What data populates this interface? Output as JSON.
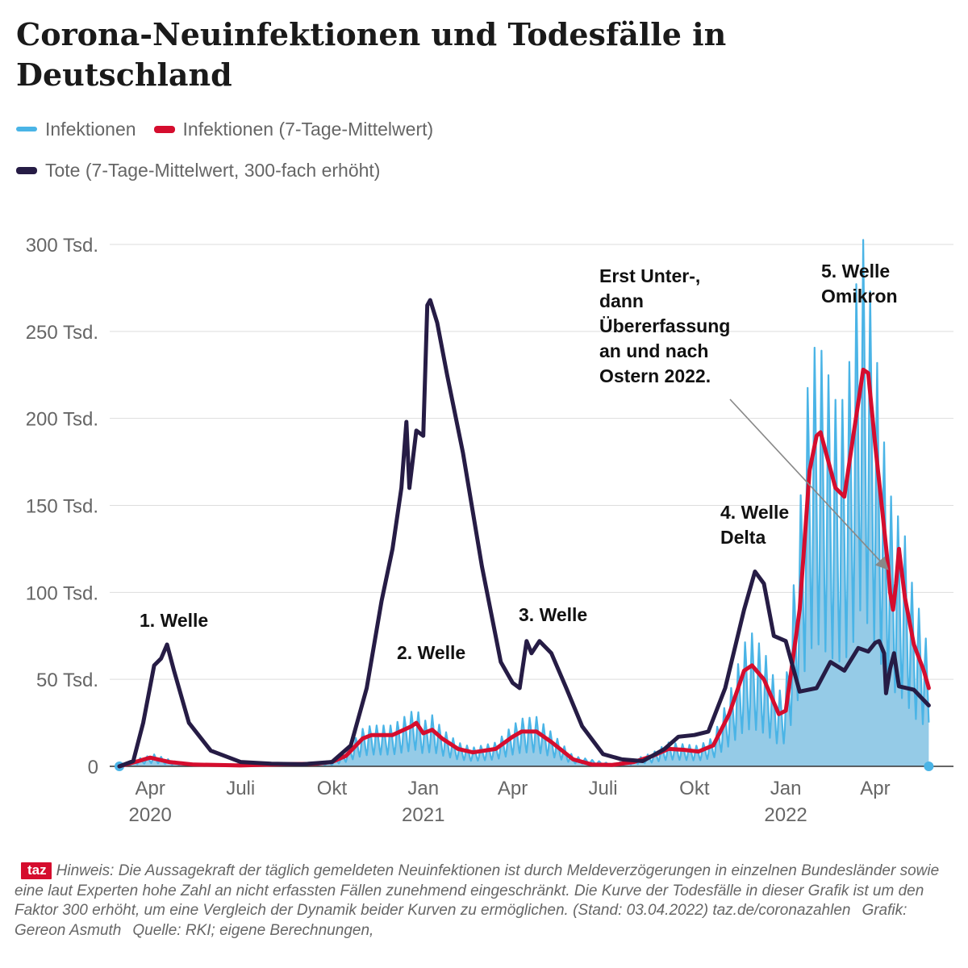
{
  "title": "Corona-Neuinfektionen und Todesfälle in Deutschland",
  "colors": {
    "infections": "#4ab4e6",
    "infections_fill": "#95cbe7",
    "avg": "#d50d2e",
    "deaths": "#261c45",
    "grid": "#dddddd",
    "axis": "#333333"
  },
  "legend": [
    {
      "label": "Infektionen",
      "color": "#4ab4e6"
    },
    {
      "label": "Infektionen (7-Tage-Mittelwert)",
      "color": "#d50d2e"
    },
    {
      "label": "Tote (7-Tage-Mittelwert, 300-fach erhöht)",
      "color": "#261c45"
    }
  ],
  "chart_data": {
    "type": "line",
    "title": "Corona-Neuinfektionen und Todesfälle in Deutschland",
    "x_axis": {
      "type": "date",
      "range": [
        "2020-03-01",
        "2022-06-01"
      ],
      "ticks": [
        {
          "date": "2020-04-01",
          "label": "Apr",
          "year": "2020"
        },
        {
          "date": "2020-07-01",
          "label": "Juli"
        },
        {
          "date": "2020-10-01",
          "label": "Okt"
        },
        {
          "date": "2021-01-01",
          "label": "Jan",
          "year": "2021"
        },
        {
          "date": "2021-04-01",
          "label": "Apr"
        },
        {
          "date": "2021-07-01",
          "label": "Juli"
        },
        {
          "date": "2021-10-01",
          "label": "Okt"
        },
        {
          "date": "2022-01-01",
          "label": "Jan",
          "year": "2022"
        },
        {
          "date": "2022-04-01",
          "label": "Apr"
        }
      ]
    },
    "y_axis": {
      "range": [
        0,
        320000
      ],
      "ticks": [
        {
          "value": 0,
          "label": "0"
        },
        {
          "value": 50000,
          "label": "50 Tsd."
        },
        {
          "value": 100000,
          "label": "100 Tsd."
        },
        {
          "value": 150000,
          "label": "150 Tsd."
        },
        {
          "value": 200000,
          "label": "200 Tsd."
        },
        {
          "value": 250000,
          "label": "250 Tsd."
        },
        {
          "value": 300000,
          "label": "300 Tsd."
        }
      ]
    },
    "grid": true,
    "series": [
      {
        "name": "Infektionen (7-Tage-Mittelwert)",
        "type": "line",
        "points": [
          [
            "2020-03-01",
            0
          ],
          [
            "2020-03-20",
            3000
          ],
          [
            "2020-04-01",
            5000
          ],
          [
            "2020-04-20",
            2500
          ],
          [
            "2020-05-15",
            1000
          ],
          [
            "2020-07-01",
            500
          ],
          [
            "2020-08-15",
            1200
          ],
          [
            "2020-09-15",
            1500
          ],
          [
            "2020-10-01",
            2500
          ],
          [
            "2020-10-15",
            6000
          ],
          [
            "2020-11-01",
            16000
          ],
          [
            "2020-11-10",
            18000
          ],
          [
            "2020-12-01",
            18000
          ],
          [
            "2020-12-20",
            23000
          ],
          [
            "2020-12-25",
            25000
          ],
          [
            "2021-01-01",
            19000
          ],
          [
            "2021-01-10",
            21000
          ],
          [
            "2021-01-20",
            16000
          ],
          [
            "2021-02-05",
            10000
          ],
          [
            "2021-02-20",
            8000
          ],
          [
            "2021-03-15",
            10000
          ],
          [
            "2021-04-01",
            17000
          ],
          [
            "2021-04-10",
            20000
          ],
          [
            "2021-04-25",
            20000
          ],
          [
            "2021-05-10",
            14000
          ],
          [
            "2021-06-01",
            4000
          ],
          [
            "2021-06-20",
            1000
          ],
          [
            "2021-07-10",
            800
          ],
          [
            "2021-08-01",
            2500
          ],
          [
            "2021-08-20",
            6000
          ],
          [
            "2021-09-05",
            10000
          ],
          [
            "2021-09-20",
            9500
          ],
          [
            "2021-10-05",
            8500
          ],
          [
            "2021-10-20",
            12000
          ],
          [
            "2021-11-05",
            30000
          ],
          [
            "2021-11-20",
            55000
          ],
          [
            "2021-11-28",
            58000
          ],
          [
            "2021-12-10",
            50000
          ],
          [
            "2021-12-25",
            30000
          ],
          [
            "2022-01-01",
            32000
          ],
          [
            "2022-01-15",
            90000
          ],
          [
            "2022-01-25",
            170000
          ],
          [
            "2022-02-01",
            190000
          ],
          [
            "2022-02-05",
            192000
          ],
          [
            "2022-02-20",
            160000
          ],
          [
            "2022-03-01",
            155000
          ],
          [
            "2022-03-10",
            190000
          ],
          [
            "2022-03-20",
            228000
          ],
          [
            "2022-03-25",
            226000
          ],
          [
            "2022-04-01",
            185000
          ],
          [
            "2022-04-08",
            148000
          ],
          [
            "2022-04-14",
            115000
          ],
          [
            "2022-04-16",
            100000
          ],
          [
            "2022-04-19",
            90000
          ],
          [
            "2022-04-22",
            105000
          ],
          [
            "2022-04-25",
            125000
          ],
          [
            "2022-05-01",
            97000
          ],
          [
            "2022-05-10",
            70000
          ],
          [
            "2022-05-20",
            55000
          ],
          [
            "2022-05-25",
            45000
          ]
        ]
      },
      {
        "name": "Tote (7-Tage-Mittelwert, 300-fach erhöht)",
        "type": "line",
        "points": [
          [
            "2020-03-01",
            0
          ],
          [
            "2020-03-15",
            3000
          ],
          [
            "2020-03-25",
            25000
          ],
          [
            "2020-04-05",
            58000
          ],
          [
            "2020-04-12",
            62000
          ],
          [
            "2020-04-18",
            70000
          ],
          [
            "2020-04-25",
            55000
          ],
          [
            "2020-05-10",
            25000
          ],
          [
            "2020-06-01",
            9000
          ],
          [
            "2020-07-01",
            2500
          ],
          [
            "2020-08-01",
            1500
          ],
          [
            "2020-09-01",
            1200
          ],
          [
            "2020-10-01",
            2500
          ],
          [
            "2020-10-20",
            12000
          ],
          [
            "2020-11-05",
            45000
          ],
          [
            "2020-11-20",
            95000
          ],
          [
            "2020-12-01",
            125000
          ],
          [
            "2020-12-10",
            160000
          ],
          [
            "2020-12-15",
            198000
          ],
          [
            "2020-12-18",
            160000
          ],
          [
            "2020-12-25",
            193000
          ],
          [
            "2021-01-01",
            190000
          ],
          [
            "2021-01-05",
            265000
          ],
          [
            "2021-01-08",
            268000
          ],
          [
            "2021-01-15",
            255000
          ],
          [
            "2021-01-25",
            225000
          ],
          [
            "2021-02-10",
            180000
          ],
          [
            "2021-03-01",
            115000
          ],
          [
            "2021-03-20",
            60000
          ],
          [
            "2021-04-01",
            48000
          ],
          [
            "2021-04-08",
            45000
          ],
          [
            "2021-04-15",
            72000
          ],
          [
            "2021-04-20",
            65000
          ],
          [
            "2021-04-28",
            72000
          ],
          [
            "2021-05-10",
            65000
          ],
          [
            "2021-05-25",
            45000
          ],
          [
            "2021-06-10",
            23000
          ],
          [
            "2021-07-01",
            7000
          ],
          [
            "2021-07-20",
            4000
          ],
          [
            "2021-08-10",
            3000
          ],
          [
            "2021-09-01",
            10000
          ],
          [
            "2021-09-15",
            17000
          ],
          [
            "2021-10-01",
            18000
          ],
          [
            "2021-10-15",
            20000
          ],
          [
            "2021-11-01",
            45000
          ],
          [
            "2021-11-20",
            90000
          ],
          [
            "2021-12-01",
            112000
          ],
          [
            "2021-12-10",
            105000
          ],
          [
            "2021-12-20",
            75000
          ],
          [
            "2022-01-01",
            72000
          ],
          [
            "2022-01-15",
            43000
          ],
          [
            "2022-02-01",
            45000
          ],
          [
            "2022-02-15",
            60000
          ],
          [
            "2022-03-01",
            55000
          ],
          [
            "2022-03-15",
            68000
          ],
          [
            "2022-03-25",
            66000
          ],
          [
            "2022-04-01",
            71000
          ],
          [
            "2022-04-05",
            72000
          ],
          [
            "2022-04-10",
            65000
          ],
          [
            "2022-04-12",
            42000
          ],
          [
            "2022-04-16",
            56000
          ],
          [
            "2022-04-20",
            65000
          ],
          [
            "2022-04-25",
            46000
          ],
          [
            "2022-05-10",
            44000
          ],
          [
            "2022-05-20",
            38000
          ],
          [
            "2022-05-25",
            35000
          ]
        ]
      }
    ],
    "daily_series": {
      "name": "Infektionen",
      "type": "area",
      "envelope": [
        [
          "2020-03-01",
          0
        ],
        [
          "2020-03-20",
          4500
        ],
        [
          "2020-04-05",
          7000
        ],
        [
          "2020-04-25",
          3000
        ],
        [
          "2020-05-20",
          1200
        ],
        [
          "2020-08-15",
          1500
        ],
        [
          "2020-09-15",
          2000
        ],
        [
          "2020-10-01",
          3000
        ],
        [
          "2020-10-15",
          9000
        ],
        [
          "2020-11-01",
          22000
        ],
        [
          "2020-11-10",
          24000
        ],
        [
          "2020-12-01",
          24000
        ],
        [
          "2020-12-20",
          32000
        ],
        [
          "2020-12-25",
          34000
        ],
        [
          "2021-01-01",
          26000
        ],
        [
          "2021-01-10",
          30000
        ],
        [
          "2021-01-20",
          22000
        ],
        [
          "2021-02-05",
          14000
        ],
        [
          "2021-02-20",
          11000
        ],
        [
          "2021-03-15",
          14000
        ],
        [
          "2021-04-01",
          24000
        ],
        [
          "2021-04-10",
          28000
        ],
        [
          "2021-04-25",
          29000
        ],
        [
          "2021-05-10",
          20000
        ],
        [
          "2021-06-01",
          6000
        ],
        [
          "2021-07-10",
          1500
        ],
        [
          "2021-08-01",
          4000
        ],
        [
          "2021-08-20",
          8000
        ],
        [
          "2021-09-05",
          14000
        ],
        [
          "2021-09-20",
          13000
        ],
        [
          "2021-10-05",
          12000
        ],
        [
          "2021-10-20",
          17000
        ],
        [
          "2021-11-05",
          42000
        ],
        [
          "2021-11-20",
          72000
        ],
        [
          "2021-11-28",
          78000
        ],
        [
          "2021-12-10",
          68000
        ],
        [
          "2021-12-25",
          44000
        ],
        [
          "2022-01-01",
          48000
        ],
        [
          "2022-01-15",
          150000
        ],
        [
          "2022-01-25",
          240000
        ],
        [
          "2022-02-03",
          250000
        ],
        [
          "2022-02-20",
          215000
        ],
        [
          "2022-03-01",
          215000
        ],
        [
          "2022-03-10",
          255000
        ],
        [
          "2022-03-17",
          320000
        ],
        [
          "2022-03-25",
          290000
        ],
        [
          "2022-04-01",
          250000
        ],
        [
          "2022-04-10",
          190000
        ],
        [
          "2022-04-16",
          160000
        ],
        [
          "2022-04-25",
          145000
        ],
        [
          "2022-05-01",
          135000
        ],
        [
          "2022-05-10",
          100000
        ],
        [
          "2022-05-20",
          85000
        ],
        [
          "2022-05-25",
          60000
        ]
      ]
    },
    "annotations": [
      {
        "lines": [
          "1. Welle"
        ]
      },
      {
        "lines": [
          "2. Welle"
        ]
      },
      {
        "lines": [
          "3. Welle"
        ]
      },
      {
        "lines": [
          "4. Welle",
          "Delta"
        ]
      },
      {
        "lines": [
          "5. Welle",
          "Omikron"
        ]
      },
      {
        "lines": [
          "Erst Unter-,",
          "dann",
          "Übererfassung",
          "an und nach",
          "Ostern 2022."
        ],
        "arrow_to": [
          "2022-04-16",
          112000
        ]
      }
    ]
  },
  "footer": {
    "logo": "taz",
    "note": "Hinweis: Die Aussagekraft der täglich gemeldeten Neuinfektionen ist durch Meldeverzögerungen in einzelnen Bundesländer sowie eine laut Experten hohe Zahl an nicht erfassten Fällen zunehmend eingeschränkt. Die Kurve der Todesfälle in dieser Grafik ist um den Faktor 300 erhöht, um eine Vergleich der Dynamik beider Kurven zu ermöglichen. (Stand: 03.04.2022) taz.de/coronazahlen",
    "credit": "Grafik: Gereon Asmuth",
    "source": "Quelle: RKI; eigene Berechnungen,"
  }
}
